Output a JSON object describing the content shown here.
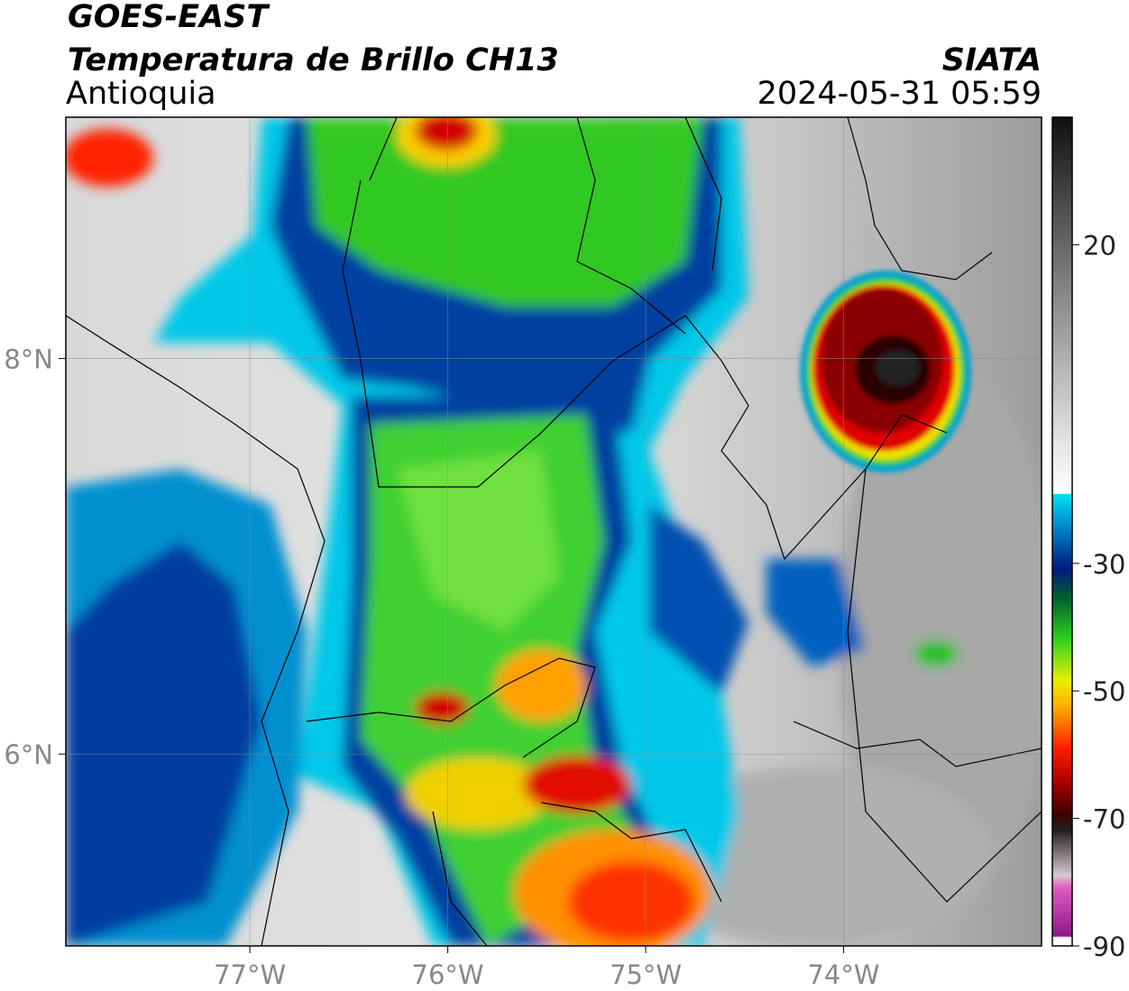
{
  "header": {
    "title": "GOES-EAST",
    "subtitle": "Temperatura de Brillo CH13",
    "region": "Antioquia",
    "source": "SIATA",
    "timestamp": "2024-05-31 05:59"
  },
  "map": {
    "lon_range": [
      -77.93,
      -73.0
    ],
    "lat_range": [
      5.03,
      9.22
    ],
    "lon_ticks": [
      {
        "value": -77,
        "label": "77°W"
      },
      {
        "value": -76,
        "label": "76°W"
      },
      {
        "value": -75,
        "label": "75°W"
      },
      {
        "value": -74,
        "label": "74°W"
      }
    ],
    "lat_ticks": [
      {
        "value": 8,
        "label": "8°N"
      },
      {
        "value": 6,
        "label": "6°N"
      }
    ]
  },
  "colorbar": {
    "range": [
      -90,
      40
    ],
    "ticks": [
      20,
      -30,
      -50,
      -70,
      -90
    ]
  }
}
